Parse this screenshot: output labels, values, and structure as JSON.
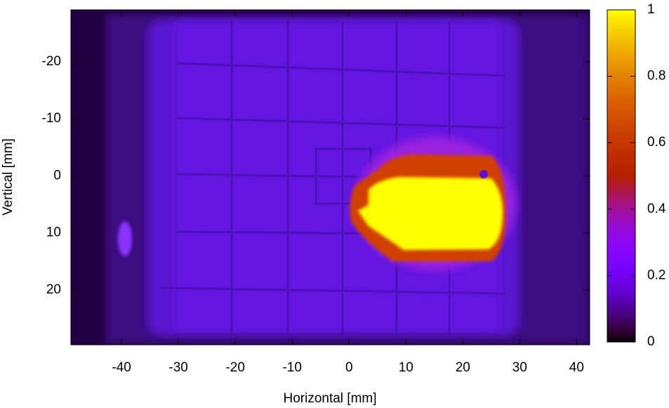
{
  "chart_data": {
    "type": "heatmap",
    "xlabel": "Horizontal [mm]",
    "ylabel": "Vertical [mm]",
    "xlim": [
      -48.9,
      42.3
    ],
    "xticks": [
      -40,
      -30,
      -20,
      -10,
      0,
      10,
      20,
      30,
      40
    ],
    "ylim": [
      -29.1,
      29.6
    ],
    "yticks": [
      -20,
      -10,
      0,
      10,
      20
    ],
    "y_reversed": true,
    "colormap": "gnuplot",
    "clim": [
      0,
      1
    ],
    "cticks": [
      0,
      0.2,
      0.4,
      0.6,
      0.8,
      1
    ]
  }
}
